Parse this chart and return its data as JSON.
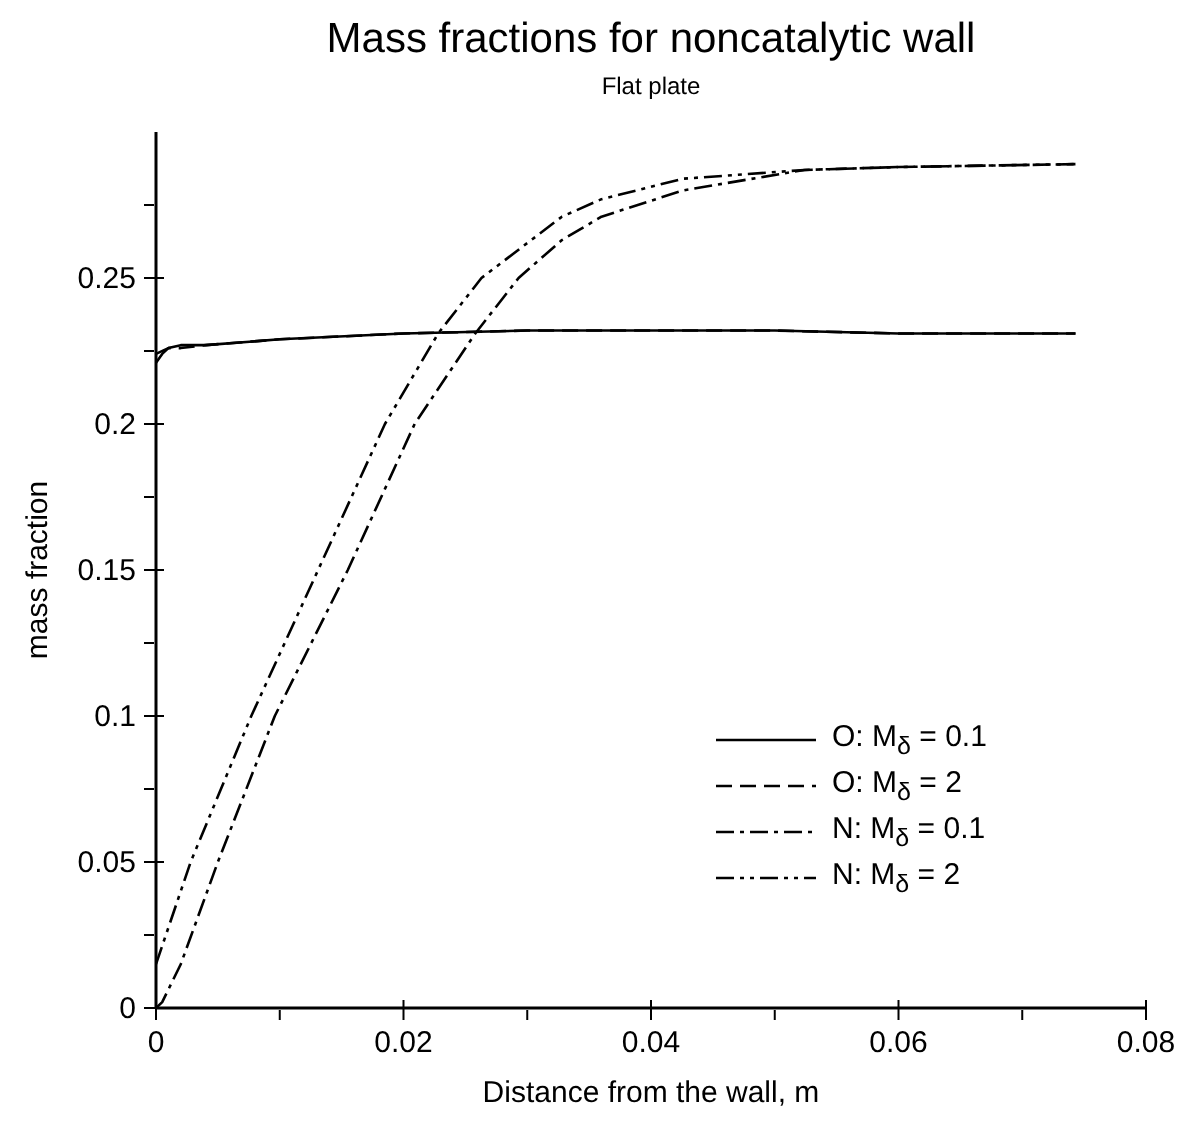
{
  "chart_data": {
    "type": "line",
    "title": "Mass fractions for noncatalytic wall",
    "subtitle": "Flat plate",
    "xlabel": "Distance from the wall, m",
    "ylabel": "mass fraction",
    "xlim": [
      0,
      0.08
    ],
    "xticks": [
      0,
      {
        "value": 0.01,
        "label": null
      },
      0.02,
      {
        "value": 0.03,
        "label": null
      },
      0.04,
      {
        "value": 0.05,
        "label": null
      },
      0.06,
      {
        "value": 0.07,
        "label": null
      },
      0.08
    ],
    "ylim": [
      0,
      0.3
    ],
    "yticks": [
      0,
      {
        "value": 0.025,
        "label": null
      },
      0.05,
      {
        "value": 0.075,
        "label": null
      },
      0.1,
      {
        "value": 0.125,
        "label": null
      },
      0.15,
      {
        "value": 0.175,
        "label": null
      },
      0.2,
      {
        "value": 0.225,
        "label": null
      },
      0.25,
      {
        "value": 0.275,
        "label": null
      }
    ],
    "legend": "bottom right",
    "grid": false,
    "series": [
      {
        "name": "O: M$_{δ}$ = 0.1",
        "color": "#000000",
        "line_style": "solid",
        "x": [
          0,
          0.0005,
          0.001,
          0.002,
          0.004,
          0.01,
          0.02,
          0.03,
          0.04,
          0.05,
          0.06,
          0.0743
        ],
        "values": [
          0.221,
          0.224,
          0.226,
          0.227,
          0.227,
          0.229,
          0.231,
          0.232,
          0.232,
          0.232,
          0.231,
          0.231
        ]
      },
      {
        "name": "O: M$_{δ}$ = 2",
        "color": "#000000",
        "line_style": "dashed",
        "x": [
          0,
          0.001,
          0.002,
          0.004,
          0.01,
          0.02,
          0.03,
          0.04,
          0.05,
          0.06,
          0.0743
        ],
        "values": [
          0.224,
          0.226,
          0.226,
          0.227,
          0.229,
          0.231,
          0.232,
          0.232,
          0.232,
          0.231,
          0.231
        ]
      },
      {
        "name": "N: M$_{δ}$ = 0.1",
        "color": "#000000",
        "line_style": "dashdot",
        "x": [
          0,
          0.0005,
          0.002,
          0.005,
          0.0096,
          0.0155,
          0.0209,
          0.0258,
          0.0293,
          0.0328,
          0.036,
          0.0426,
          0.0524,
          0.06,
          0.0743
        ],
        "values": [
          0,
          0.002,
          0.015,
          0.05,
          0.1,
          0.15,
          0.2,
          0.231,
          0.25,
          0.263,
          0.271,
          0.28,
          0.287,
          0.288,
          0.289
        ]
      },
      {
        "name": "N: M$_{δ}$ = 2",
        "color": "#000000",
        "line_style": "dashdotdot",
        "x": [
          0,
          0.0028,
          0.0077,
          0.0131,
          0.0185,
          0.0228,
          0.0263,
          0.0328,
          0.036,
          0.0426,
          0.0524,
          0.06,
          0.0743
        ],
        "values": [
          0.015,
          0.05,
          0.1,
          0.15,
          0.2,
          0.231,
          0.25,
          0.271,
          0.277,
          0.284,
          0.287,
          0.288,
          0.289
        ]
      }
    ]
  }
}
